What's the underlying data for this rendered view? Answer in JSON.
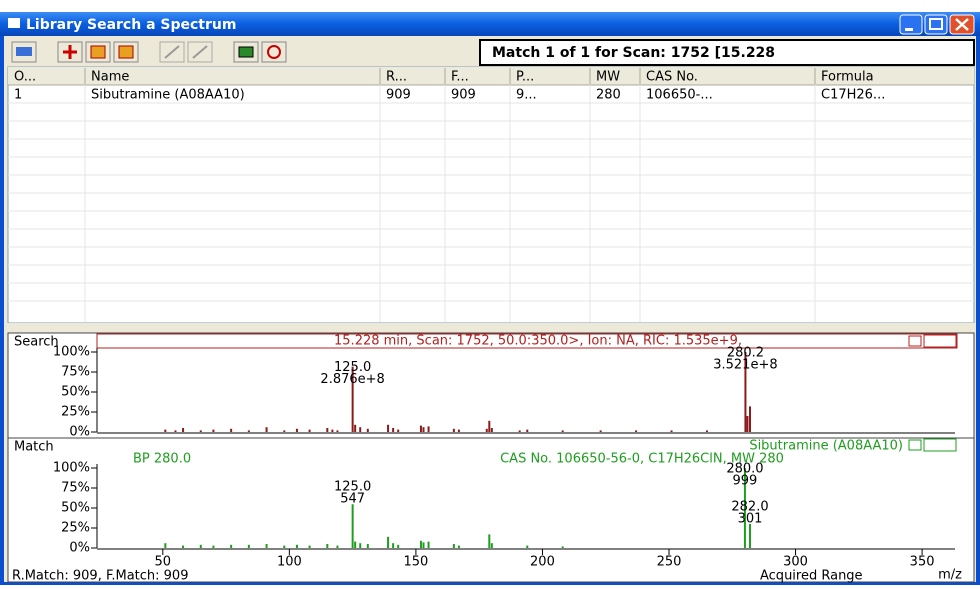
{
  "window": {
    "title": "Library Search a Spectrum"
  },
  "toolbar": {
    "status": "Match 1 of 1 for Scan: 1752 [15.228"
  },
  "table": {
    "columns": [
      "O...",
      "Name",
      "R...",
      "F...",
      "P...",
      "MW",
      "CAS No.",
      "Formula"
    ],
    "rows": [
      [
        "1",
        "Sibutramine (A08AA10)",
        "909",
        "909",
        "9...",
        "280",
        "106650-...",
        "C17H26..."
      ]
    ]
  },
  "chart_data": [
    {
      "type": "stem",
      "panel_label": "Search",
      "header": "15.228 min, Scan: 1752, 50.0:350.0>, Ion: NA, RIC: 1.535e+9,",
      "color": "#8b1a1a",
      "x": [
        51,
        55,
        58,
        65,
        70,
        77,
        84,
        91,
        98,
        103,
        108,
        115,
        117,
        119,
        125,
        126,
        128,
        131,
        139,
        141,
        143,
        152,
        153,
        155,
        165,
        167,
        178,
        179,
        180,
        191,
        194,
        208,
        223,
        237,
        251,
        265,
        280.2,
        281,
        282
      ],
      "values": [
        3,
        2,
        5,
        2,
        3,
        4,
        2,
        6,
        2,
        4,
        3,
        5,
        3,
        2,
        81.7,
        9,
        6,
        4,
        9,
        5,
        3,
        8,
        6,
        7,
        4,
        3,
        4,
        14,
        5,
        2,
        3,
        2,
        2,
        2,
        2,
        2,
        100,
        20,
        32
      ],
      "peak_labels": [
        {
          "x": 125,
          "label": "125.0",
          "abundance": "2.876e+8"
        },
        {
          "x": 280.2,
          "label": "280.2",
          "abundance": "3.521e+8"
        }
      ],
      "xlim": [
        24,
        363
      ],
      "ylim": [
        0,
        100
      ],
      "yticks": [
        {
          "value": 100,
          "label": "100%"
        },
        {
          "value": 75,
          "label": "75%"
        },
        {
          "value": 50,
          "label": "50%"
        },
        {
          "value": 25,
          "label": "25%"
        },
        {
          "value": 0,
          "label": "0%"
        }
      ]
    },
    {
      "type": "stem",
      "panel_label": "Match",
      "name": "Sibutramine (A08AA10)",
      "base_peak": "BP 280.0",
      "info": "CAS No. 106650-56-0, C17H26ClN, MW 280",
      "color": "#1e9e1e",
      "x": [
        51,
        58,
        65,
        70,
        77,
        84,
        91,
        98,
        103,
        108,
        115,
        119,
        125,
        126,
        128,
        131,
        139,
        141,
        143,
        152,
        153,
        155,
        165,
        167,
        179,
        180,
        194,
        208,
        280,
        282
      ],
      "values": [
        6,
        3,
        4,
        3,
        4,
        4,
        5,
        3,
        4,
        3,
        5,
        3,
        54.7,
        8,
        6,
        5,
        14,
        6,
        4,
        9,
        7,
        8,
        5,
        3,
        17,
        6,
        3,
        2,
        99.9,
        30.1
      ],
      "peak_labels": [
        {
          "x": 125,
          "label": "125.0",
          "abundance": "547"
        },
        {
          "x": 280,
          "label": "280.0",
          "abundance": "999"
        },
        {
          "x": 282,
          "label": "282.0",
          "abundance": "301"
        }
      ],
      "xlim": [
        24,
        363
      ],
      "ylim": [
        0,
        100
      ],
      "yticks": [
        {
          "value": 100,
          "label": "100%"
        },
        {
          "value": 75,
          "label": "75%"
        },
        {
          "value": 50,
          "label": "50%"
        },
        {
          "value": 25,
          "label": "25%"
        },
        {
          "value": 0,
          "label": "0%"
        }
      ],
      "xticks": [
        50,
        100,
        150,
        200,
        250,
        300,
        350
      ],
      "xlabel": "m/z"
    }
  ],
  "footer": {
    "scores": "R.Match: 909, F.Match: 909",
    "range": "Acquired Range"
  }
}
